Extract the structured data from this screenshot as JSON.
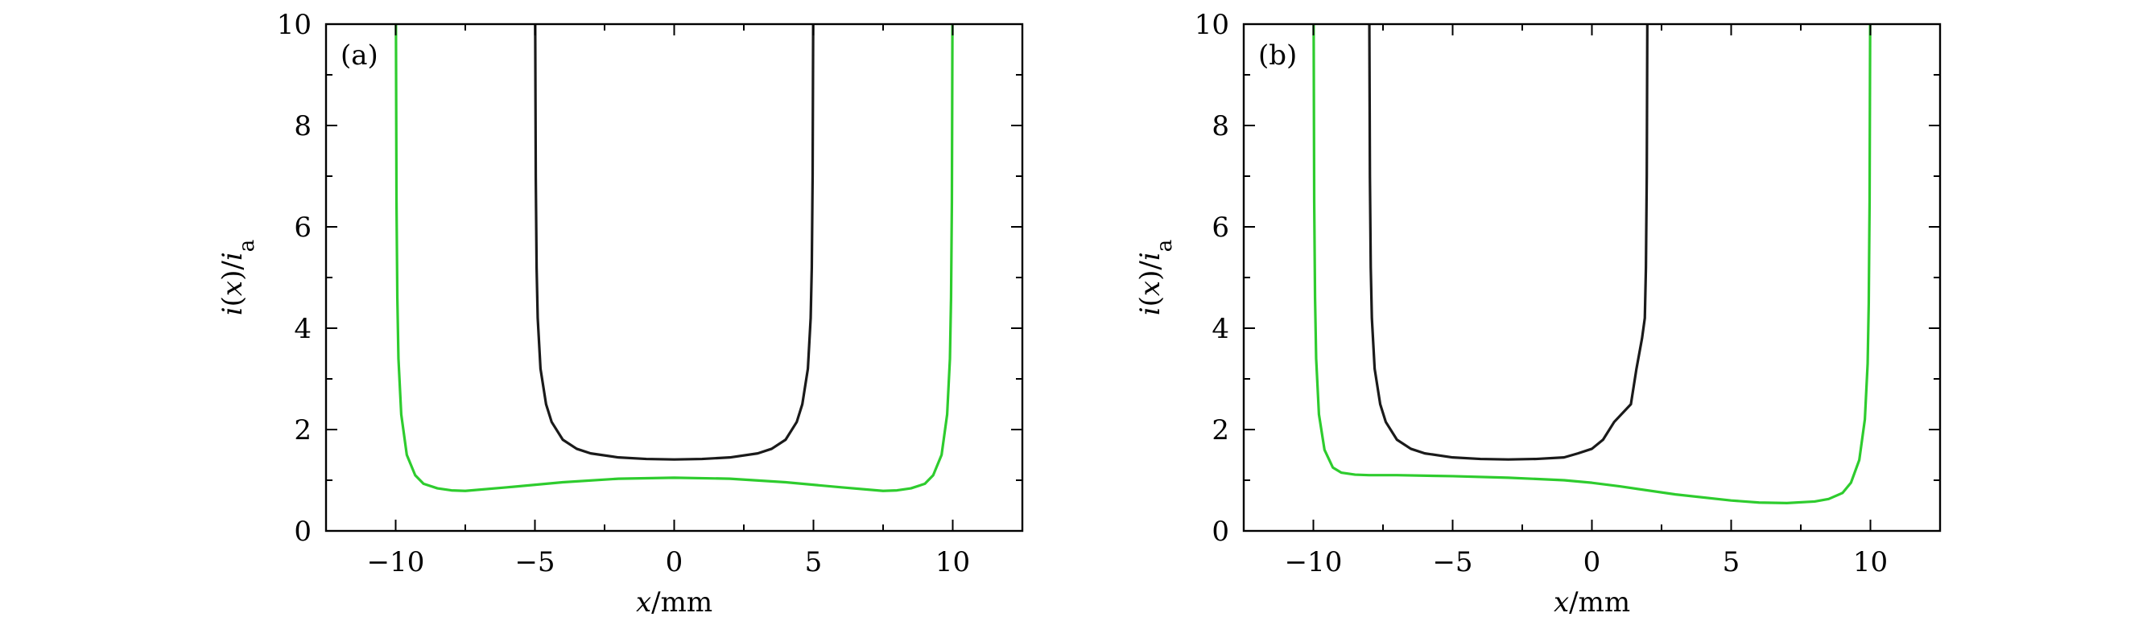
{
  "chart_data": [
    {
      "type": "line",
      "panel_label": "(a)",
      "xlabel": "x/mm",
      "ylabel": "i(x)/i_a",
      "xlim": [
        -12.5,
        12.5
      ],
      "ylim": [
        0,
        10
      ],
      "xticks": [
        -10,
        -5,
        0,
        5,
        10
      ],
      "xtick_labels": [
        "−10",
        "−5",
        "0",
        "5",
        "10"
      ],
      "yticks": [
        0,
        2,
        4,
        6,
        8,
        10
      ],
      "ytick_labels": [
        "0",
        "2",
        "4",
        "6",
        "8",
        "10"
      ],
      "grid": false,
      "series": [
        {
          "color": "#1a1a1a",
          "x": [
            -4.99,
            -4.97,
            -4.94,
            -4.9,
            -4.8,
            -4.6,
            -4.4,
            -4.0,
            -3.5,
            -3.0,
            -2.0,
            -1.0,
            0,
            1.0,
            2.0,
            3.0,
            3.5,
            4.0,
            4.4,
            4.6,
            4.8,
            4.9,
            4.94,
            4.97,
            4.99
          ],
          "y": [
            10,
            7.0,
            5.2,
            4.2,
            3.2,
            2.5,
            2.15,
            1.8,
            1.62,
            1.53,
            1.45,
            1.42,
            1.41,
            1.42,
            1.45,
            1.53,
            1.62,
            1.8,
            2.15,
            2.5,
            3.2,
            4.2,
            5.2,
            7.0,
            10
          ]
        },
        {
          "color": "#2ecc2e",
          "x": [
            -9.99,
            -9.97,
            -9.94,
            -9.9,
            -9.8,
            -9.6,
            -9.3,
            -9.0,
            -8.5,
            -8.0,
            -7.5,
            -6.0,
            -4.0,
            -2.0,
            0,
            2.0,
            4.0,
            6.0,
            7.5,
            8.0,
            8.5,
            9.0,
            9.3,
            9.6,
            9.8,
            9.9,
            9.94,
            9.97,
            9.99
          ],
          "y": [
            10,
            6.5,
            4.6,
            3.4,
            2.3,
            1.5,
            1.1,
            0.93,
            0.84,
            0.8,
            0.79,
            0.86,
            0.96,
            1.03,
            1.05,
            1.03,
            0.96,
            0.86,
            0.79,
            0.8,
            0.84,
            0.93,
            1.1,
            1.5,
            2.3,
            3.4,
            4.6,
            6.5,
            10
          ]
        }
      ]
    },
    {
      "type": "line",
      "panel_label": "(b)",
      "xlabel": "x/mm",
      "ylabel": "i(x)/i_a",
      "xlim": [
        -12.5,
        12.5
      ],
      "ylim": [
        0,
        10
      ],
      "xticks": [
        -10,
        -5,
        0,
        5,
        10
      ],
      "xtick_labels": [
        "−10",
        "−5",
        "0",
        "5",
        "10"
      ],
      "yticks": [
        0,
        2,
        4,
        6,
        8,
        10
      ],
      "ytick_labels": [
        "0",
        "2",
        "4",
        "6",
        "8",
        "10"
      ],
      "grid": false,
      "series": [
        {
          "color": "#1a1a1a",
          "x": [
            -7.99,
            -7.97,
            -7.94,
            -7.9,
            -7.8,
            -7.6,
            -7.4,
            -7.0,
            -6.5,
            -6.0,
            -5.0,
            -4.0,
            -3.0,
            -2.0,
            -1.0,
            -0.5,
            0,
            0.4,
            0.8,
            1.4,
            1.6,
            1.8,
            1.9,
            1.94,
            1.97,
            1.99
          ],
          "y": [
            10,
            7.0,
            5.2,
            4.2,
            3.2,
            2.5,
            2.15,
            1.8,
            1.62,
            1.53,
            1.45,
            1.42,
            1.41,
            1.42,
            1.45,
            1.53,
            1.62,
            1.8,
            2.15,
            2.5,
            3.2,
            3.8,
            4.2,
            5.2,
            7.0,
            10
          ]
        },
        {
          "color": "#2ecc2e",
          "x": [
            -9.99,
            -9.97,
            -9.94,
            -9.9,
            -9.8,
            -9.6,
            -9.3,
            -9.0,
            -8.5,
            -8.0,
            -7.0,
            -5.0,
            -3.0,
            -1.0,
            0,
            1.0,
            3.0,
            5.0,
            6.0,
            7.0,
            8.0,
            8.5,
            9.0,
            9.3,
            9.6,
            9.8,
            9.9,
            9.94,
            9.97,
            9.99
          ],
          "y": [
            10,
            6.5,
            4.6,
            3.4,
            2.3,
            1.6,
            1.25,
            1.15,
            1.11,
            1.1,
            1.1,
            1.08,
            1.05,
            1.0,
            0.95,
            0.88,
            0.72,
            0.6,
            0.56,
            0.55,
            0.58,
            0.63,
            0.75,
            0.95,
            1.4,
            2.2,
            3.3,
            4.5,
            6.5,
            10
          ]
        }
      ]
    }
  ]
}
